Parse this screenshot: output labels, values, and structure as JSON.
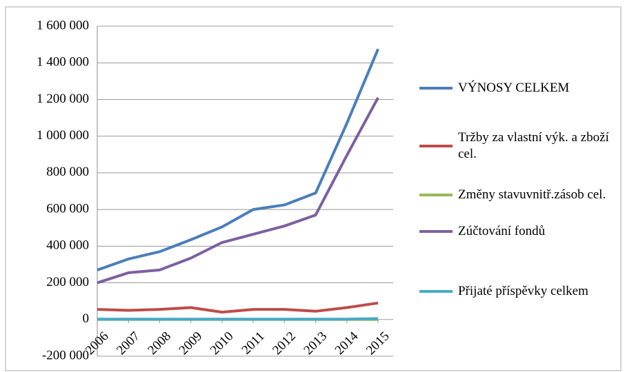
{
  "chart_data": {
    "type": "line",
    "categories": [
      "2006",
      "2007",
      "2008",
      "2009",
      "2010",
      "2011",
      "2012",
      "2013",
      "2014",
      "2015"
    ],
    "series": [
      {
        "name": "VÝNOSY CELKEM",
        "color": "#4a7ebb",
        "values": [
          270000,
          330000,
          370000,
          435000,
          505000,
          600000,
          625000,
          690000,
          1070000,
          1475000
        ]
      },
      {
        "name": "Tržby za vlastní výk. a zboží cel.",
        "color": "#be4b48",
        "values": [
          55000,
          50000,
          55000,
          65000,
          40000,
          55000,
          55000,
          45000,
          65000,
          90000
        ]
      },
      {
        "name": "Změny stavuvnitř.zásob cel.",
        "color": "#98b954",
        "values": [
          0,
          0,
          0,
          0,
          0,
          0,
          0,
          0,
          0,
          0
        ]
      },
      {
        "name": "Zúčtování fondů",
        "color": "#7d60a0",
        "values": [
          200000,
          255000,
          270000,
          335000,
          420000,
          465000,
          510000,
          570000,
          895000,
          1210000
        ]
      },
      {
        "name": "Přijaté příspěvky celkem",
        "color": "#46aac5",
        "values": [
          2000,
          2000,
          2000,
          2000,
          2000,
          2000,
          2000,
          2000,
          2000,
          5000
        ]
      }
    ],
    "ylim": [
      -200000,
      1600000
    ],
    "yticks": [
      {
        "value": -200000,
        "label": "-200 000"
      },
      0,
      {
        "value": 200000,
        "label": "200 000"
      },
      {
        "value": 400000,
        "label": "400 000"
      },
      {
        "value": 600000,
        "label": "600 000"
      },
      {
        "value": 800000,
        "label": "800 000"
      },
      {
        "value": 1000000,
        "label": "1 000 000"
      },
      {
        "value": 1200000,
        "label": "1 200 000"
      },
      {
        "value": 1400000,
        "label": "1 400 000"
      },
      {
        "value": 1600000,
        "label": "1 600 000"
      }
    ],
    "grid": true,
    "legend": "right"
  }
}
